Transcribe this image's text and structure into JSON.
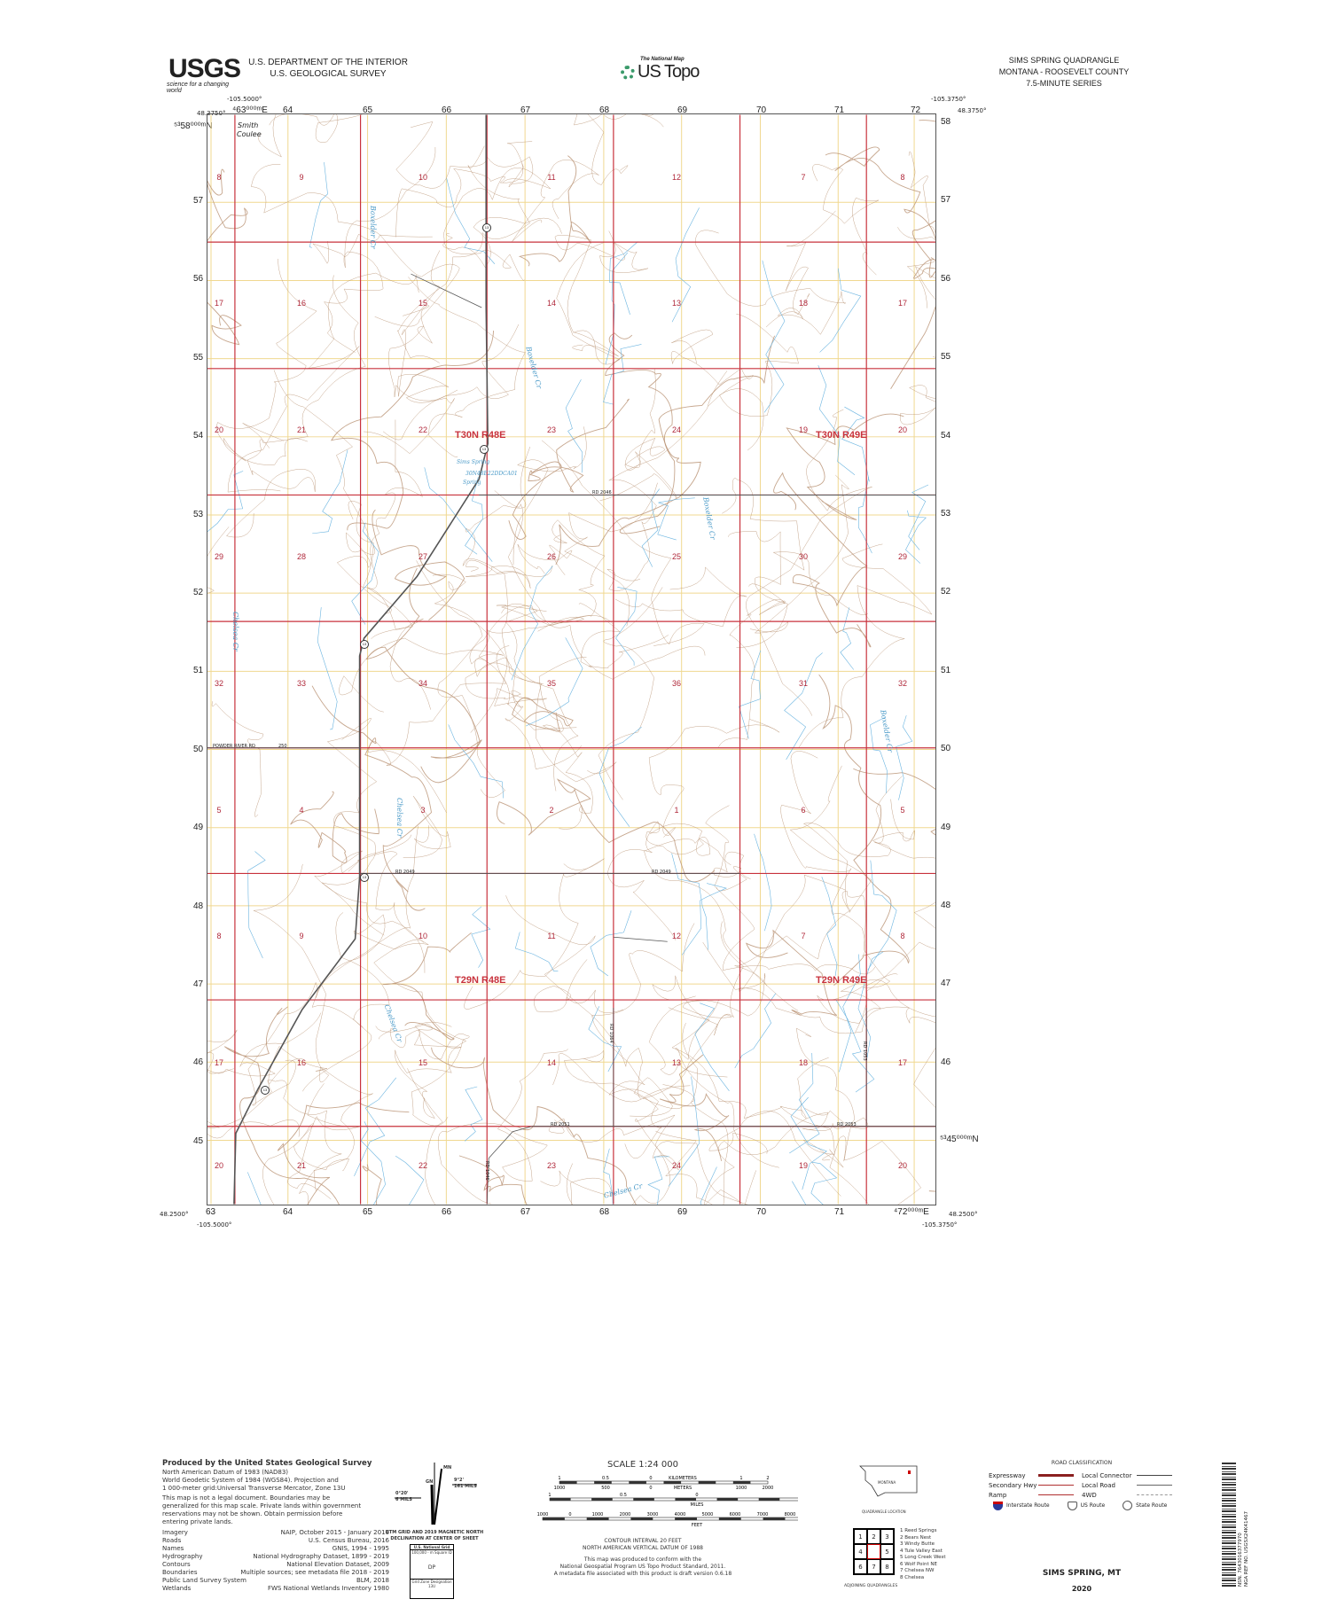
{
  "header": {
    "agency_logo": "USGS",
    "agency_tagline": "science for a changing world",
    "dept_line1": "U.S. DEPARTMENT OF THE INTERIOR",
    "dept_line2": "U.S. GEOLOGICAL SURVEY",
    "center_logo_small": "The National Map",
    "center_logo_big": "US Topo",
    "quad_title": "SIMS SPRING QUADRANGLE",
    "quad_state": "MONTANA - ROOSEVELT COUNTY",
    "quad_series": "7.5-MINUTE SERIES"
  },
  "corners": {
    "nw_lon": "-105.5000°",
    "nw_lat": "48.3750°",
    "ne_lon": "-105.3750°",
    "ne_lat": "48.3750°",
    "sw_lon": "-105.5000°",
    "sw_lat": "48.2500°",
    "se_lon": "-105.3750°",
    "se_lat": "48.2500°",
    "nw_easting": "⁴63⁰⁰⁰ᵐE",
    "nw_northing": "⁵³58⁰⁰⁰ᵐN",
    "se_easting": "⁴72⁰⁰⁰ᵐE",
    "sw_northing": "⁵³45⁰⁰⁰ᵐN"
  },
  "utm_x_labels": [
    "64",
    "65",
    "66",
    "67",
    "68",
    "69",
    "70",
    "71",
    "72"
  ],
  "utm_x_bottom": [
    "63",
    "64",
    "65",
    "66",
    "67",
    "68",
    "69",
    "70",
    "71"
  ],
  "utm_y_labels": [
    "57",
    "56",
    "55",
    "54",
    "53",
    "52",
    "51",
    "50",
    "49",
    "48",
    "47",
    "46",
    "45"
  ],
  "utm_y_right": [
    "58",
    "57",
    "56",
    "55",
    "54",
    "53",
    "52",
    "51",
    "50",
    "49",
    "48",
    "47",
    "46"
  ],
  "sections": [
    [
      "8",
      "9",
      "10",
      "11",
      "12",
      "7",
      "8"
    ],
    [
      "17",
      "16",
      "15",
      "14",
      "13",
      "18",
      "17"
    ],
    [
      "20",
      "21",
      "22",
      "23",
      "24",
      "19",
      "20"
    ],
    [
      "29",
      "28",
      "27",
      "26",
      "25",
      "30",
      "29"
    ],
    [
      "32",
      "33",
      "34",
      "35",
      "36",
      "31",
      "32"
    ],
    [
      "5",
      "4",
      "3",
      "2",
      "1",
      "6",
      "5"
    ],
    [
      "8",
      "9",
      "10",
      "11",
      "12",
      "7",
      "8"
    ],
    [
      "17",
      "16",
      "15",
      "14",
      "13",
      "18",
      "17"
    ],
    [
      "20",
      "21",
      "22",
      "23",
      "24",
      "19",
      "20"
    ]
  ],
  "townships": [
    "T30N R48E",
    "T30N R49E",
    "T29N R48E",
    "T29N R49E"
  ],
  "place_names": {
    "smith_coulee_1": "Smith",
    "smith_coulee_2": "Coulee",
    "sims_spring": "Sims Spring",
    "spring_id": "30N48E22DDCA01",
    "spring": "Spring"
  },
  "creeks": [
    "Boxelder Cr",
    "Boxelder Cr",
    "Boxelder Cr",
    "Boxelder Cr",
    "Chelsea Cr",
    "Chelsea Cr",
    "Chelsea Cr",
    "Chelsea Cr"
  ],
  "roads": {
    "route": "13",
    "rd2046": "RD 2046",
    "powder": "POWDER RIVER RD",
    "rd2049a": "RD 2049",
    "rd2049b": "RD 2049",
    "rd2051": "RD 2051",
    "rd2053": "RD 2053",
    "rd1064": "RD 1064",
    "rd1046": "RD 1046",
    "rd1053": "RD 1053",
    "route250": "250"
  },
  "colors": {
    "section_line": "#c8323c",
    "utm_grid": "#f0d890",
    "contour": "#b89070",
    "water": "#6ab4e0",
    "road": "#555555"
  },
  "footer": {
    "produced": "Produced by the United States Geological Survey",
    "datum_lines": [
      "North American Datum of 1983 (NAD83)",
      "World Geodetic System of 1984 (WGS84). Projection and",
      "1 000-meter grid:Universal Transverse Mercator, Zone 13U"
    ],
    "legal": [
      "This map is not a legal document. Boundaries may be",
      "generalized for this map scale. Private lands within government",
      "reservations may not be shown. Obtain permission before",
      "entering private lands."
    ],
    "credits": [
      [
        "Imagery",
        "NAIP, October 2015 - January 2016"
      ],
      [
        "Roads",
        "U.S. Census Bureau, 2016"
      ],
      [
        "Names",
        "GNIS, 1994 - 1995"
      ],
      [
        "Hydrography",
        "National Hydrography Dataset, 1899 - 2019"
      ],
      [
        "Contours",
        "National Elevation Dataset, 2009"
      ],
      [
        "Boundaries",
        "Multiple sources; see metadata file 2018 - 2019"
      ],
      [
        "Public Land Survey System",
        "BLM, 2018"
      ],
      [
        "Wetlands",
        "FWS National Wetlands Inventory 1980"
      ]
    ],
    "declination": {
      "mn": "MN",
      "gn": "GN",
      "left_angle": "0°20'",
      "left_mils": "6 MILS",
      "right_angle": "9°2'",
      "right_mils": "161 MILS",
      "caption1": "UTM GRID AND 2019 MAGNETIC NORTH",
      "caption2": "DECLINATION AT CENTER OF SHEET"
    },
    "grid_box": {
      "title": "U.S. National Grid",
      "sub": "100,000 - m Square ID",
      "id": "DP",
      "zone_label": "Grid Zone Designation",
      "zone": "13U"
    },
    "scale": {
      "title": "SCALE 1:24 000",
      "km_labels": [
        "1",
        "0.5",
        "0",
        "KILOMETERS",
        "1",
        "2"
      ],
      "m_labels": [
        "1000",
        "500",
        "0",
        "METERS",
        "1000",
        "2000"
      ],
      "mi_labels": [
        "1",
        "0.5",
        "0",
        "1"
      ],
      "mi_unit": "MILES",
      "ft_labels": [
        "1000",
        "0",
        "1000",
        "2000",
        "3000",
        "4000",
        "5000",
        "6000",
        "7000",
        "8000",
        "9000",
        "10000"
      ],
      "ft_unit": "FEET"
    },
    "contour_note": [
      "CONTOUR INTERVAL 20 FEET",
      "NORTH AMERICAN VERTICAL DATUM OF 1988"
    ],
    "standard_note": [
      "This map was produced to conform with the",
      "National Geospatial Program US Topo Product Standard, 2011.",
      "A metadata file associated with this product is draft version 0.6.18"
    ],
    "location": {
      "state": "MONTANA",
      "caption": "QUADRANGLE LOCATION"
    },
    "adjoining": {
      "caption": "ADJOINING QUADRANGLES",
      "cells": [
        "1",
        "2",
        "3",
        "4",
        "",
        "5",
        "6",
        "7",
        "8"
      ],
      "names": [
        "1 Reed Springs",
        "2 Bears Nest",
        "3 Windy Butte",
        "4 Tule Valley East",
        "5 Long Creek West",
        "6 Wolf Point NE",
        "7 Chelsea NW",
        "8 Chelsea"
      ]
    },
    "road_class": {
      "title": "ROAD CLASSIFICATION",
      "left": [
        "Expressway",
        "Secondary Hwy",
        "Ramp"
      ],
      "right": [
        "Local Connector",
        "Local Road",
        "4WD"
      ],
      "shields": [
        "Interstate Route",
        "US Route",
        "State Route"
      ]
    },
    "sheet_name": "SIMS SPRING,  MT",
    "year": "2020",
    "barcode": {
      "line1": "NSN. 7643016377970",
      "line2": "NGA REF NO. USGSX24K41467"
    }
  }
}
